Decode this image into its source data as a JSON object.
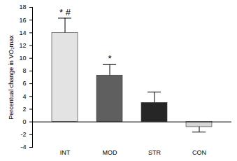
{
  "chart_data": {
    "type": "bar",
    "y_label": "Percentual change in VO₂max",
    "categories": [
      "INT",
      "MOD",
      "STR",
      "CON"
    ],
    "values": [
      14.0,
      7.3,
      3.0,
      -0.8
    ],
    "errors": [
      2.3,
      1.7,
      1.7,
      0.8
    ],
    "annotations": [
      {
        "category": "INT",
        "text": "* #"
      },
      {
        "category": "MOD",
        "text": "*"
      }
    ],
    "colors": [
      "#e3e3e3",
      "#5f5f5f",
      "#262626",
      "#d6d6d6"
    ],
    "ylim": [
      -4,
      18
    ],
    "yticks": [
      -4,
      -2,
      0,
      2,
      4,
      6,
      8,
      10,
      12,
      14,
      16,
      18
    ],
    "grid": false
  }
}
